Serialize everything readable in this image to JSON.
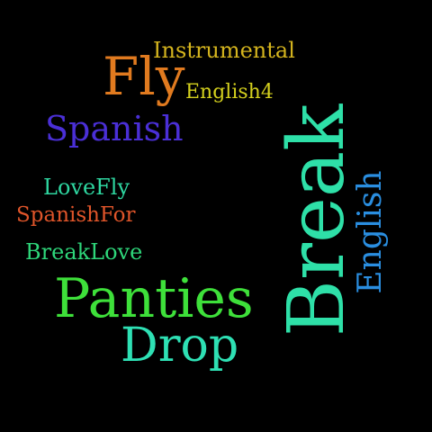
{
  "words": [
    {
      "id": "instrumental",
      "text": "Instrumental",
      "color": "#d4b41e"
    },
    {
      "id": "fly",
      "text": "Fly",
      "color": "#e07a1f"
    },
    {
      "id": "english4",
      "text": "English4",
      "color": "#d4d01e"
    },
    {
      "id": "spanish",
      "text": "Spanish",
      "color": "#4a2fd6"
    },
    {
      "id": "lovefly",
      "text": "LoveFly",
      "color": "#2ed6a0"
    },
    {
      "id": "spanishfor",
      "text": "SpanishFor",
      "color": "#e0552a"
    },
    {
      "id": "breaklove",
      "text": "BreakLove",
      "color": "#2ed67a"
    },
    {
      "id": "panties",
      "text": "Panties",
      "color": "#3ee03a"
    },
    {
      "id": "drop",
      "text": "Drop",
      "color": "#2ee0b4"
    },
    {
      "id": "break",
      "text": "Break",
      "color": "#2ee0a8"
    },
    {
      "id": "english",
      "text": "English",
      "color": "#2a8ee0"
    }
  ]
}
